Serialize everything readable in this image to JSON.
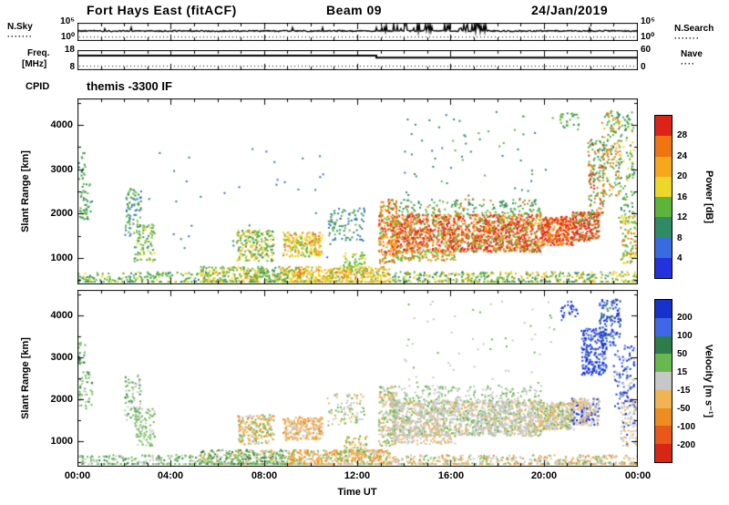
{
  "header": {
    "station": "Fort Hays East (fitACF)",
    "beam": "Beam 09",
    "date": "24/Jan/2019"
  },
  "noise_panel": {
    "left_label": "N.Sky",
    "ytick_top": "10⁵",
    "ytick_bottom": "10⁰",
    "right_tick_top": "10⁵",
    "right_tick_bottom": "10⁰",
    "right_label": "N.Search",
    "dots": "·······"
  },
  "freq_panel": {
    "label_line1": "Freq.",
    "label_line2": "[MHz]",
    "ytick_top": "18",
    "ytick_bottom": "8",
    "right_tick_top": "60",
    "right_tick_bottom": "0",
    "right_label": "Nave",
    "dots": "····"
  },
  "cpid": {
    "label": "CPID",
    "value": "themis -3300 IF"
  },
  "power_panel": {
    "ylabel": "Slant Range [km]",
    "yticks": [
      "4000",
      "3000",
      "2000",
      "1000"
    ],
    "colorbar_label": "Power [dB]",
    "colorbar_ticks": [
      "28",
      "24",
      "20",
      "16",
      "12",
      "8",
      "4"
    ]
  },
  "velocity_panel": {
    "ylabel": "Slant Range [km]",
    "yticks": [
      "4000",
      "3000",
      "2000",
      "1000"
    ],
    "colorbar_label": "Velocity [m s⁻¹]",
    "colorbar_ticks": [
      "200",
      "100",
      "50",
      "15",
      "-15",
      "-50",
      "-100",
      "-200"
    ]
  },
  "xaxis": {
    "label": "Time UT",
    "ticks": [
      "00:00",
      "04:00",
      "08:00",
      "12:00",
      "16:00",
      "20:00",
      "00:00"
    ]
  },
  "chart_data": {
    "type": "scatter",
    "description": "SuperDARN range-time summary plot: sky noise, transmit frequency, backscatter power (dB) and line-of-sight velocity (m/s) versus slant range and UT time",
    "x_hours": [
      0,
      24
    ],
    "x_tick_step_hours": 4,
    "range_km": [
      400,
      4600
    ],
    "range_ticks_km": [
      1000,
      2000,
      3000,
      4000
    ],
    "power_scale_db": [
      4,
      28
    ],
    "velocity_scale_ms": [
      -200,
      200
    ],
    "power_palette_top_down": [
      "#dd2318",
      "#f0740f",
      "#f5a81c",
      "#ecd72a",
      "#5cb53a",
      "#2f8a66",
      "#3a6ae0",
      "#2233dd"
    ],
    "velocity_palette_top_down": [
      "#1631cc",
      "#3e68e8",
      "#2e7c4e",
      "#67b94f",
      "#c7c7c7",
      "#f0b452",
      "#ee8c1e",
      "#e8581a",
      "#d92614"
    ],
    "noise": {
      "line_frac": 0.45,
      "search_frac": 0.78,
      "spike_hours": [
        13,
        17.5
      ]
    },
    "freq": {
      "mhz_axis": [
        8,
        18
      ],
      "level_before": 15.3,
      "level_after": 14.2,
      "step_hour": 12.8,
      "nave_frac": 0.8
    },
    "power_clusters": [
      {
        "t": [
          0.0,
          5.2
        ],
        "r": [
          410,
          700
        ],
        "n": 170,
        "c": [
          5,
          6,
          4
        ]
      },
      {
        "t": [
          5.2,
          9.0
        ],
        "r": [
          410,
          820
        ],
        "n": 380,
        "c": [
          5,
          4,
          3,
          6
        ]
      },
      {
        "t": [
          9.0,
          13.4
        ],
        "r": [
          410,
          820
        ],
        "n": 470,
        "c": [
          4,
          3,
          5,
          2
        ]
      },
      {
        "t": [
          13.4,
          24.0
        ],
        "r": [
          410,
          700
        ],
        "n": 420,
        "c": [
          5,
          6,
          4,
          3
        ]
      },
      {
        "t": [
          0.05,
          0.6
        ],
        "r": [
          1800,
          2700
        ],
        "n": 45,
        "c": [
          5,
          6
        ]
      },
      {
        "t": [
          0.0,
          0.3
        ],
        "r": [
          2800,
          3400
        ],
        "n": 18,
        "c": [
          5,
          6
        ]
      },
      {
        "t": [
          2.0,
          2.7
        ],
        "r": [
          1500,
          2600
        ],
        "n": 80,
        "c": [
          5,
          6,
          7
        ]
      },
      {
        "t": [
          2.4,
          3.3
        ],
        "r": [
          900,
          1800
        ],
        "n": 90,
        "c": [
          5,
          6,
          4
        ]
      },
      {
        "t": [
          6.8,
          8.4
        ],
        "r": [
          950,
          1650
        ],
        "n": 210,
        "c": [
          5,
          4,
          3,
          6
        ]
      },
      {
        "t": [
          8.8,
          10.5
        ],
        "r": [
          1050,
          1600
        ],
        "n": 230,
        "c": [
          4,
          3,
          5,
          2
        ]
      },
      {
        "t": [
          10.7,
          12.3
        ],
        "r": [
          1400,
          2150
        ],
        "n": 90,
        "c": [
          6,
          7,
          5
        ]
      },
      {
        "t": [
          11.4,
          12.4
        ],
        "r": [
          700,
          1150
        ],
        "n": 60,
        "c": [
          5,
          4
        ]
      },
      {
        "t": [
          12.9,
          13.7
        ],
        "r": [
          900,
          2350
        ],
        "n": 200,
        "c": [
          2,
          3,
          1,
          5
        ]
      },
      {
        "t": [
          13.4,
          19.9
        ],
        "r": [
          1150,
          2000
        ],
        "n": 1600,
        "c": [
          1,
          2,
          3,
          5
        ]
      },
      {
        "t": [
          13.4,
          19.9
        ],
        "r": [
          1980,
          2350
        ],
        "n": 170,
        "c": [
          5,
          6,
          2
        ]
      },
      {
        "t": [
          13.5,
          16.2
        ],
        "r": [
          950,
          1180
        ],
        "n": 110,
        "c": [
          5,
          3,
          2
        ]
      },
      {
        "t": [
          19.9,
          21.3
        ],
        "r": [
          1300,
          1950
        ],
        "n": 330,
        "c": [
          1,
          2,
          3
        ]
      },
      {
        "t": [
          21.2,
          22.4
        ],
        "r": [
          1400,
          2050
        ],
        "n": 250,
        "c": [
          1,
          2,
          5
        ]
      },
      {
        "t": [
          21.9,
          22.6
        ],
        "r": [
          2000,
          3700
        ],
        "n": 130,
        "c": [
          5,
          1,
          6,
          2
        ]
      },
      {
        "t": [
          22.5,
          23.3
        ],
        "r": [
          2400,
          4350
        ],
        "n": 150,
        "c": [
          5,
          2,
          6,
          3
        ]
      },
      {
        "t": [
          23.2,
          23.9
        ],
        "r": [
          1800,
          4350
        ],
        "n": 120,
        "c": [
          5,
          6,
          4
        ]
      },
      {
        "t": [
          20.7,
          21.5
        ],
        "r": [
          3900,
          4350
        ],
        "n": 28,
        "c": [
          5,
          6
        ]
      },
      {
        "t": [
          23.3,
          24.0
        ],
        "r": [
          900,
          2000
        ],
        "n": 90,
        "c": [
          5,
          2,
          4
        ]
      },
      {
        "t": [
          3.0,
          11.0
        ],
        "r": [
          900,
          3600
        ],
        "n": 35,
        "c": [
          6,
          7
        ]
      },
      {
        "t": [
          14.0,
          20.5
        ],
        "r": [
          2400,
          4350
        ],
        "n": 55,
        "c": [
          6,
          5,
          7
        ]
      }
    ],
    "velocity_clusters": [
      {
        "t": [
          0.0,
          5.2
        ],
        "r": [
          410,
          700
        ],
        "n": 170,
        "c": [
          4,
          5,
          3
        ]
      },
      {
        "t": [
          5.2,
          9.0
        ],
        "r": [
          410,
          820
        ],
        "n": 380,
        "c": [
          4,
          3,
          5,
          6
        ]
      },
      {
        "t": [
          9.0,
          13.4
        ],
        "r": [
          410,
          820
        ],
        "n": 470,
        "c": [
          6,
          7,
          5,
          4
        ]
      },
      {
        "t": [
          13.4,
          24.0
        ],
        "r": [
          410,
          700
        ],
        "n": 420,
        "c": [
          5,
          6,
          4,
          7
        ]
      },
      {
        "t": [
          0.05,
          0.6
        ],
        "r": [
          1800,
          2700
        ],
        "n": 45,
        "c": [
          4,
          3,
          5
        ]
      },
      {
        "t": [
          0.0,
          0.3
        ],
        "r": [
          2800,
          3400
        ],
        "n": 18,
        "c": [
          4,
          3
        ]
      },
      {
        "t": [
          2.0,
          2.7
        ],
        "r": [
          1500,
          2600
        ],
        "n": 80,
        "c": [
          5,
          4,
          3
        ]
      },
      {
        "t": [
          2.4,
          3.3
        ],
        "r": [
          900,
          1800
        ],
        "n": 90,
        "c": [
          4,
          5
        ]
      },
      {
        "t": [
          6.8,
          8.4
        ],
        "r": [
          950,
          1650
        ],
        "n": 210,
        "c": [
          6,
          5,
          7,
          4
        ]
      },
      {
        "t": [
          8.8,
          10.5
        ],
        "r": [
          1050,
          1600
        ],
        "n": 230,
        "c": [
          6,
          7,
          5
        ]
      },
      {
        "t": [
          10.7,
          12.3
        ],
        "r": [
          1400,
          2150
        ],
        "n": 90,
        "c": [
          5,
          4,
          6
        ]
      },
      {
        "t": [
          11.4,
          12.4
        ],
        "r": [
          700,
          1150
        ],
        "n": 60,
        "c": [
          6,
          4
        ]
      },
      {
        "t": [
          12.9,
          13.7
        ],
        "r": [
          900,
          2350
        ],
        "n": 200,
        "c": [
          5,
          6,
          4
        ]
      },
      {
        "t": [
          13.4,
          19.9
        ],
        "r": [
          1150,
          2000
        ],
        "n": 1600,
        "c": [
          5,
          5,
          6,
          4
        ]
      },
      {
        "t": [
          13.4,
          19.9
        ],
        "r": [
          1980,
          2350
        ],
        "n": 170,
        "c": [
          5,
          4
        ]
      },
      {
        "t": [
          13.5,
          16.2
        ],
        "r": [
          950,
          1180
        ],
        "n": 110,
        "c": [
          5,
          6
        ]
      },
      {
        "t": [
          19.9,
          21.3
        ],
        "r": [
          1300,
          1950
        ],
        "n": 330,
        "c": [
          5,
          6,
          4
        ]
      },
      {
        "t": [
          21.2,
          22.4
        ],
        "r": [
          1400,
          2050
        ],
        "n": 250,
        "c": [
          5,
          1,
          6
        ]
      },
      {
        "t": [
          21.6,
          22.7
        ],
        "r": [
          2600,
          3700
        ],
        "n": 220,
        "c": [
          1,
          2
        ]
      },
      {
        "t": [
          22.4,
          23.3
        ],
        "r": [
          3300,
          4400
        ],
        "n": 130,
        "c": [
          1,
          2,
          3
        ]
      },
      {
        "t": [
          23.0,
          23.9
        ],
        "r": [
          1800,
          3300
        ],
        "n": 110,
        "c": [
          1,
          5,
          2
        ]
      },
      {
        "t": [
          20.7,
          21.5
        ],
        "r": [
          3900,
          4350
        ],
        "n": 28,
        "c": [
          1,
          2
        ]
      },
      {
        "t": [
          23.3,
          24.0
        ],
        "r": [
          900,
          2000
        ],
        "n": 90,
        "c": [
          5,
          6,
          1
        ]
      },
      {
        "t": [
          14.0,
          20.5
        ],
        "r": [
          2400,
          4350
        ],
        "n": 55,
        "c": [
          5,
          4
        ]
      }
    ]
  }
}
